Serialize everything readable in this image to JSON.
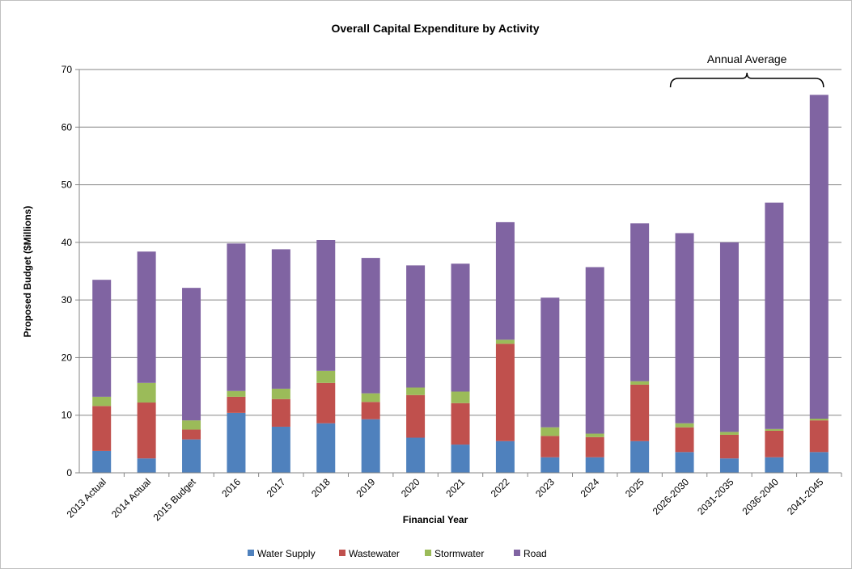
{
  "chart_data": {
    "type": "bar",
    "stacked": true,
    "title": "Overall Capital Expenditure by Activity",
    "xlabel": "Financial Year",
    "ylabel": "Proposed Budget ($Millions)",
    "ylim": [
      0,
      70
    ],
    "yticks": [
      0,
      10,
      20,
      30,
      40,
      50,
      60,
      70
    ],
    "grid": true,
    "legend_position": "bottom",
    "categories": [
      "2013 Actual",
      "2014 Actual",
      "2015 Budget",
      "2016",
      "2017",
      "2018",
      "2019",
      "2020",
      "2021",
      "2022",
      "2023",
      "2024",
      "2025",
      "2026-2030",
      "2031-2035",
      "2036-2040",
      "2041-2045"
    ],
    "series": [
      {
        "name": "Water Supply",
        "color": "#4F81BD",
        "values": [
          3.8,
          2.5,
          5.8,
          10.4,
          8.0,
          8.6,
          9.3,
          6.1,
          4.9,
          5.5,
          2.7,
          2.7,
          5.5,
          3.6,
          2.5,
          2.7,
          3.6
        ]
      },
      {
        "name": "Wastewater",
        "color": "#C0504D",
        "values": [
          7.8,
          9.7,
          1.7,
          2.8,
          4.8,
          7.0,
          3.0,
          7.4,
          7.2,
          16.9,
          3.7,
          3.5,
          9.8,
          4.3,
          4.1,
          4.6,
          5.5
        ]
      },
      {
        "name": "Stormwater",
        "color": "#9BBB59",
        "values": [
          1.6,
          3.4,
          1.6,
          1.0,
          1.8,
          2.1,
          1.5,
          1.3,
          2.0,
          0.7,
          1.5,
          0.6,
          0.6,
          0.7,
          0.5,
          0.3,
          0.3
        ]
      },
      {
        "name": "Road",
        "color": "#8064A2",
        "values": [
          20.3,
          22.8,
          23.0,
          25.6,
          24.2,
          22.7,
          23.5,
          21.2,
          22.2,
          20.4,
          22.5,
          28.9,
          27.4,
          33.0,
          32.9,
          39.3,
          56.2
        ]
      }
    ],
    "annotation": {
      "text": "Annual Average",
      "from_category": "2026-2030",
      "to_category": "2041-2045"
    }
  }
}
